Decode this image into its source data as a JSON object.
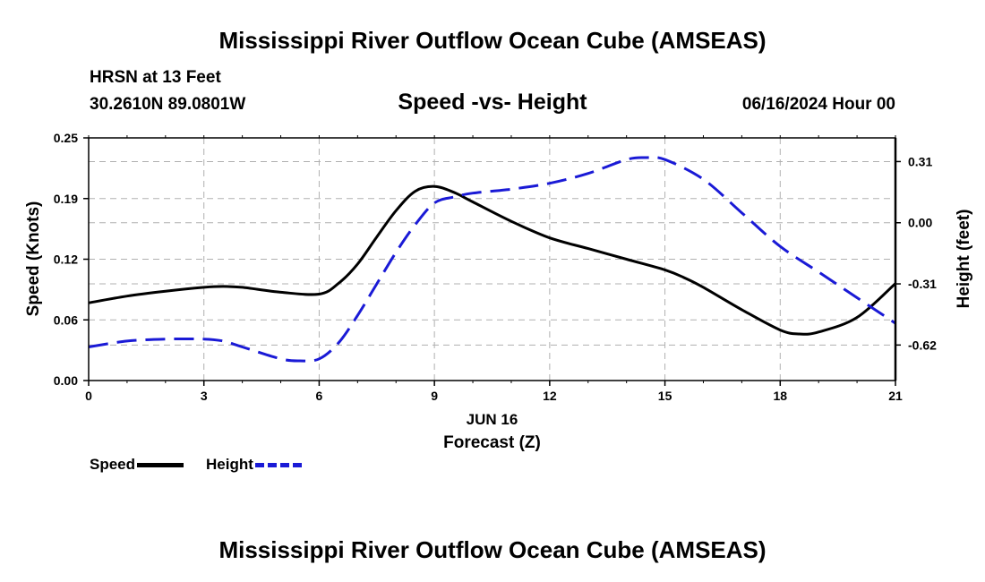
{
  "header": {
    "title": "Mississippi River Outflow Ocean Cube (AMSEAS)",
    "station": "HRSN at 13 Feet",
    "coords": "30.2610N  89.0801W",
    "subtitle": "Speed -vs- Height",
    "datetime": "06/16/2024 Hour 00"
  },
  "footer": {
    "title": "Mississippi River Outflow Ocean Cube (AMSEAS)"
  },
  "legend": {
    "speed_label": "Speed",
    "height_label": "Height"
  },
  "colors": {
    "speed": "#000000",
    "height": "#1a1ad6",
    "grid": "#b0b0b0"
  },
  "chart_data": {
    "type": "line",
    "title": "Speed -vs- Height",
    "xlabel": "Forecast (Z)",
    "xlabel_date": "JUN 16",
    "ylabel_left": "Speed (Knots)",
    "ylabel_right": "Height (feet)",
    "xlim": [
      0,
      21
    ],
    "ylim_left": [
      0,
      0.25
    ],
    "ylim_right": [
      -0.8,
      0.43
    ],
    "x_ticks": [
      0,
      3,
      6,
      9,
      12,
      15,
      18,
      21
    ],
    "x_tick_labels": [
      "0",
      "3",
      "6",
      "9",
      "12",
      "15",
      "18",
      "21"
    ],
    "y_left_ticks": [
      0,
      0.0625,
      0.125,
      0.1875,
      0.25
    ],
    "y_left_tick_labels": [
      "0.00",
      "0.06",
      "0.12",
      "0.19",
      "0.25"
    ],
    "y_right_ticks": [
      -0.62,
      -0.31,
      0.0,
      0.31
    ],
    "y_right_tick_labels": [
      "-0.62",
      "-0.31",
      "0.00",
      "0.31"
    ],
    "grid": true,
    "series": [
      {
        "name": "Speed",
        "axis": "left",
        "x": [
          0,
          1,
          2,
          3,
          3.5,
          4,
          5,
          6,
          6.5,
          7,
          7.5,
          8,
          8.5,
          9,
          9.5,
          10,
          11,
          12,
          13,
          14,
          15,
          15.5,
          16,
          17,
          18,
          18.5,
          19,
          20,
          21
        ],
        "values": [
          0.08,
          0.087,
          0.092,
          0.096,
          0.097,
          0.096,
          0.091,
          0.089,
          0.1,
          0.12,
          0.148,
          0.175,
          0.195,
          0.2,
          0.194,
          0.184,
          0.164,
          0.147,
          0.136,
          0.125,
          0.114,
          0.106,
          0.096,
          0.073,
          0.052,
          0.048,
          0.05,
          0.065,
          0.1
        ]
      },
      {
        "name": "Height",
        "axis": "right",
        "x": [
          0,
          1,
          2,
          3,
          3.5,
          4,
          5,
          5.5,
          6,
          6.5,
          7,
          7.5,
          8,
          8.5,
          9,
          9.5,
          10,
          11,
          12,
          13,
          14,
          14.5,
          15,
          16,
          17,
          18,
          19,
          20,
          21
        ],
        "values": [
          -0.63,
          -0.6,
          -0.59,
          -0.59,
          -0.6,
          -0.63,
          -0.69,
          -0.7,
          -0.69,
          -0.61,
          -0.47,
          -0.31,
          -0.15,
          -0.01,
          0.1,
          0.13,
          0.15,
          0.17,
          0.2,
          0.25,
          0.32,
          0.33,
          0.32,
          0.22,
          0.05,
          -0.12,
          -0.25,
          -0.38,
          -0.51
        ]
      }
    ]
  }
}
